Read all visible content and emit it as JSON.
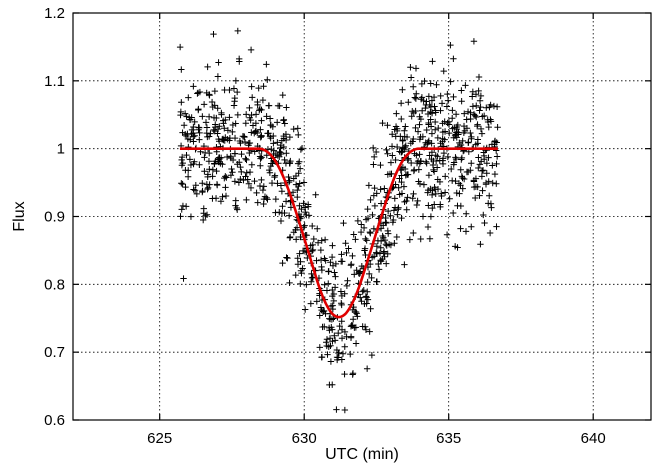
{
  "chart_data": {
    "type": "scatter",
    "title": "",
    "xlabel": "UTC (min)",
    "ylabel": "Flux",
    "xlim": [
      622,
      642
    ],
    "ylim": [
      0.6,
      1.2
    ],
    "xticks": [
      625,
      630,
      635,
      640
    ],
    "yticks": [
      0.6,
      0.7,
      0.8,
      0.9,
      1.0,
      1.1,
      1.2
    ],
    "xtick_labels": [
      "625",
      "630",
      "635",
      "640"
    ],
    "ytick_labels": [
      "0.6",
      "0.7",
      "0.8",
      "0.9",
      "1",
      "1.1",
      "1.2"
    ],
    "grid": true,
    "legend": null,
    "series": [
      {
        "kind": "scatter",
        "marker": "+",
        "color": "#000000",
        "x_range": [
          625.7,
          636.7
        ],
        "approx_points": 1100,
        "scatter_sigma": 0.055,
        "description_values": "noisy flux measurements following the model curve"
      },
      {
        "kind": "line",
        "color": "#e00000",
        "x": [
          625.7,
          628.7,
          629.2,
          629.7,
          630.2,
          630.7,
          631.2,
          631.7,
          632.2,
          632.7,
          633.2,
          633.7,
          636.7
        ],
        "y": [
          1.0,
          1.0,
          0.97,
          0.91,
          0.84,
          0.77,
          0.745,
          0.77,
          0.835,
          0.905,
          0.97,
          1.0,
          1.0
        ]
      }
    ]
  }
}
